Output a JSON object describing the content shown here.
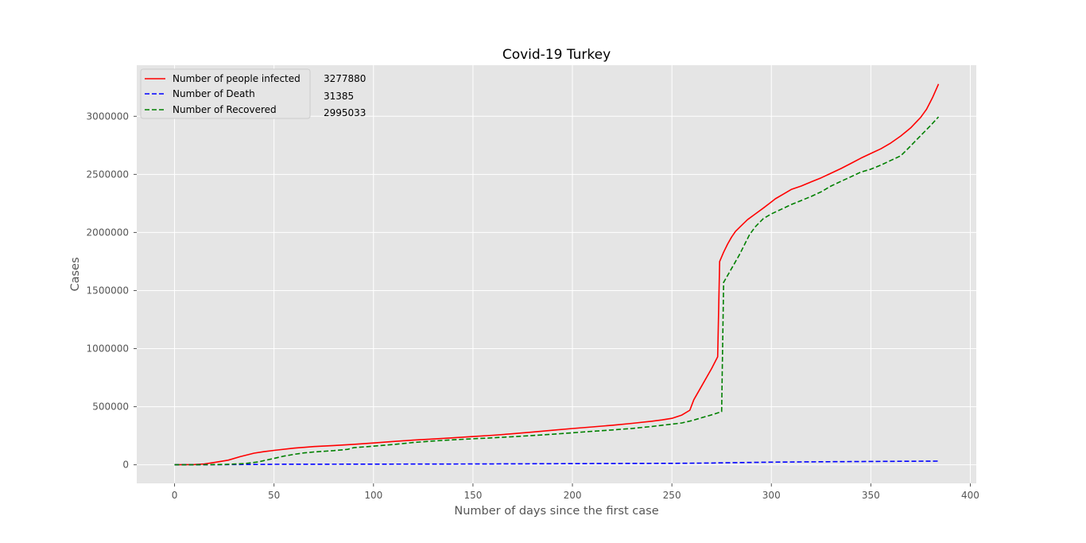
{
  "chart_data": {
    "type": "line",
    "title": "Covid-19 Turkey",
    "xlabel": "Number of days since the first case",
    "ylabel": "Cases",
    "xlim": [
      -19,
      403
    ],
    "ylim": [
      -160000,
      3440000
    ],
    "xticks": [
      0,
      50,
      100,
      150,
      200,
      250,
      300,
      350,
      400
    ],
    "yticks": [
      0,
      500000,
      1000000,
      1500000,
      2000000,
      2500000,
      3000000
    ],
    "grid": true,
    "legend_position": "top-left",
    "series": [
      {
        "name": "Number of people infected",
        "color": "#ff0000",
        "dash": "solid",
        "x": [
          0,
          10,
          15,
          20,
          27,
          33,
          40,
          45,
          50,
          60,
          70,
          80,
          90,
          100,
          110,
          120,
          130,
          140,
          150,
          160,
          170,
          180,
          190,
          200,
          210,
          220,
          230,
          240,
          245,
          250,
          255,
          259,
          261,
          265,
          270,
          273,
          274,
          276,
          278,
          280,
          282,
          285,
          288,
          292,
          296,
          299,
          302,
          306,
          310,
          315,
          320,
          325,
          330,
          335,
          340,
          345,
          350,
          355,
          360,
          365,
          370,
          375,
          378,
          381,
          384
        ],
        "values": [
          0,
          2000,
          7000,
          20000,
          40000,
          70000,
          100000,
          113000,
          124000,
          143000,
          157000,
          166000,
          176000,
          188000,
          201000,
          212000,
          222000,
          232000,
          243000,
          254000,
          267000,
          282000,
          297000,
          312000,
          326000,
          340000,
          357000,
          375000,
          386000,
          400000,
          428000,
          470000,
          560000,
          680000,
          830000,
          930000,
          1750000,
          1830000,
          1900000,
          1960000,
          2010000,
          2060000,
          2110000,
          2160000,
          2210000,
          2250000,
          2290000,
          2330000,
          2370000,
          2400000,
          2435000,
          2470000,
          2510000,
          2550000,
          2595000,
          2640000,
          2680000,
          2720000,
          2770000,
          2830000,
          2900000,
          2990000,
          3060000,
          3160000,
          3277880
        ]
      },
      {
        "name": "Number of Death",
        "color": "#0000ff",
        "dash": "dashed",
        "x": [
          0,
          20,
          50,
          100,
          150,
          200,
          250,
          270,
          274,
          280,
          300,
          320,
          340,
          360,
          384
        ],
        "values": [
          0,
          500,
          4000,
          5500,
          7000,
          9500,
          12500,
          15500,
          16500,
          18000,
          22500,
          25500,
          27500,
          29500,
          31385
        ]
      },
      {
        "name": "Number of Recovered",
        "color": "#008000",
        "dash": "dashed",
        "x": [
          0,
          15,
          25,
          35,
          42,
          46,
          50,
          55,
          60,
          65,
          70,
          80,
          87,
          90,
          100,
          110,
          120,
          130,
          140,
          150,
          160,
          170,
          180,
          190,
          200,
          210,
          220,
          230,
          240,
          250,
          255,
          260,
          265,
          270,
          275,
          275.5,
          276,
          280,
          284,
          289,
          292,
          296,
          300,
          305,
          310,
          315,
          320,
          325,
          330,
          335,
          340,
          345,
          350,
          355,
          360,
          365,
          368,
          372,
          376,
          380,
          384
        ],
        "values": [
          0,
          1000,
          3000,
          10000,
          25000,
          40000,
          55000,
          75000,
          90000,
          102000,
          110000,
          122000,
          133000,
          147000,
          160000,
          175000,
          192000,
          205000,
          215000,
          224000,
          232000,
          242000,
          252000,
          263000,
          275000,
          288000,
          300000,
          313000,
          330000,
          350000,
          360000,
          380000,
          405000,
          430000,
          458000,
          1000000,
          1570000,
          1690000,
          1810000,
          1980000,
          2050000,
          2120000,
          2160000,
          2200000,
          2240000,
          2275000,
          2310000,
          2350000,
          2400000,
          2440000,
          2480000,
          2520000,
          2545000,
          2580000,
          2620000,
          2660000,
          2710000,
          2780000,
          2850000,
          2920000,
          2995033
        ]
      }
    ],
    "annotations": [
      "3277880",
      "31385",
      "2995033"
    ]
  }
}
